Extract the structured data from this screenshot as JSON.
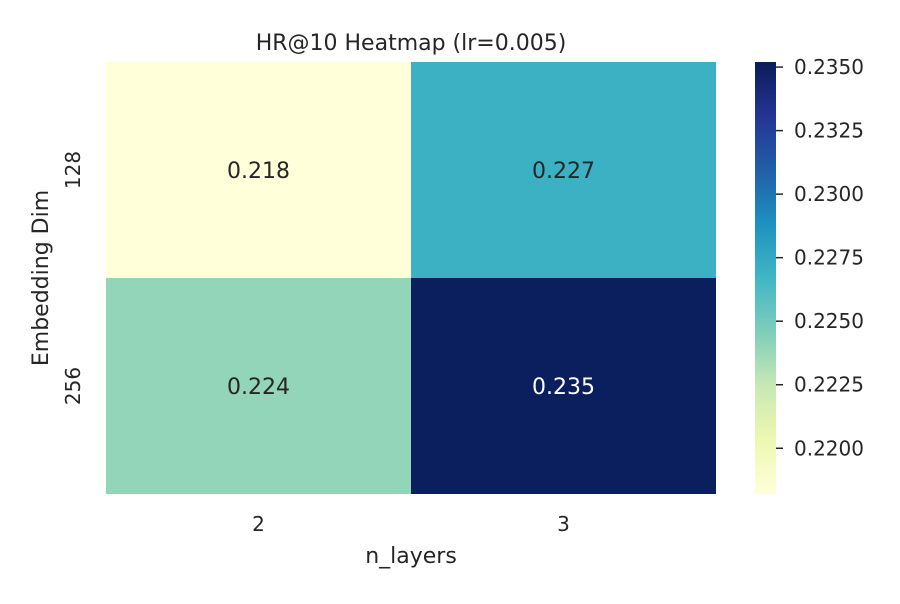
{
  "chart_data": {
    "type": "heatmap",
    "title": "HR@10 Heatmap (lr=0.005)",
    "xlabel": "n_layers",
    "ylabel": "Embedding Dim",
    "x_categories": [
      "2",
      "3"
    ],
    "y_categories": [
      "128",
      "256"
    ],
    "values": [
      [
        0.218,
        0.227
      ],
      [
        0.224,
        0.235
      ]
    ],
    "value_labels": [
      [
        "0.218",
        "0.227"
      ],
      [
        "0.224",
        "0.235"
      ]
    ],
    "colormap": "YlGnBu",
    "colorbar": {
      "vmin": 0.2182,
      "vmax": 0.2352,
      "ticks": [
        0.22,
        0.2225,
        0.225,
        0.2275,
        0.23,
        0.2325,
        0.235
      ],
      "tick_labels": [
        "0.2200",
        "0.2225",
        "0.2250",
        "0.2275",
        "0.2300",
        "0.2325",
        "0.2350"
      ]
    },
    "grid": false,
    "legend": "none"
  }
}
